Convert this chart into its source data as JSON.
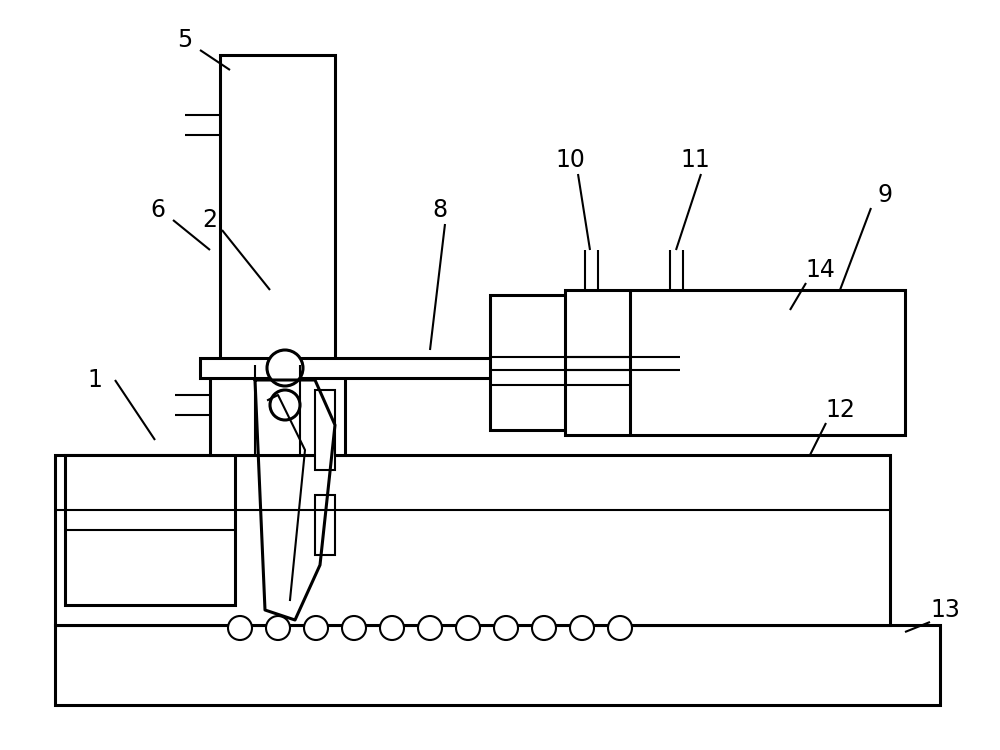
{
  "bg_color": "#ffffff",
  "line_color": "#000000",
  "lw": 2.2,
  "thin_lw": 1.5,
  "fig_width": 10,
  "fig_height": 7.5,
  "label_fontsize": 17
}
